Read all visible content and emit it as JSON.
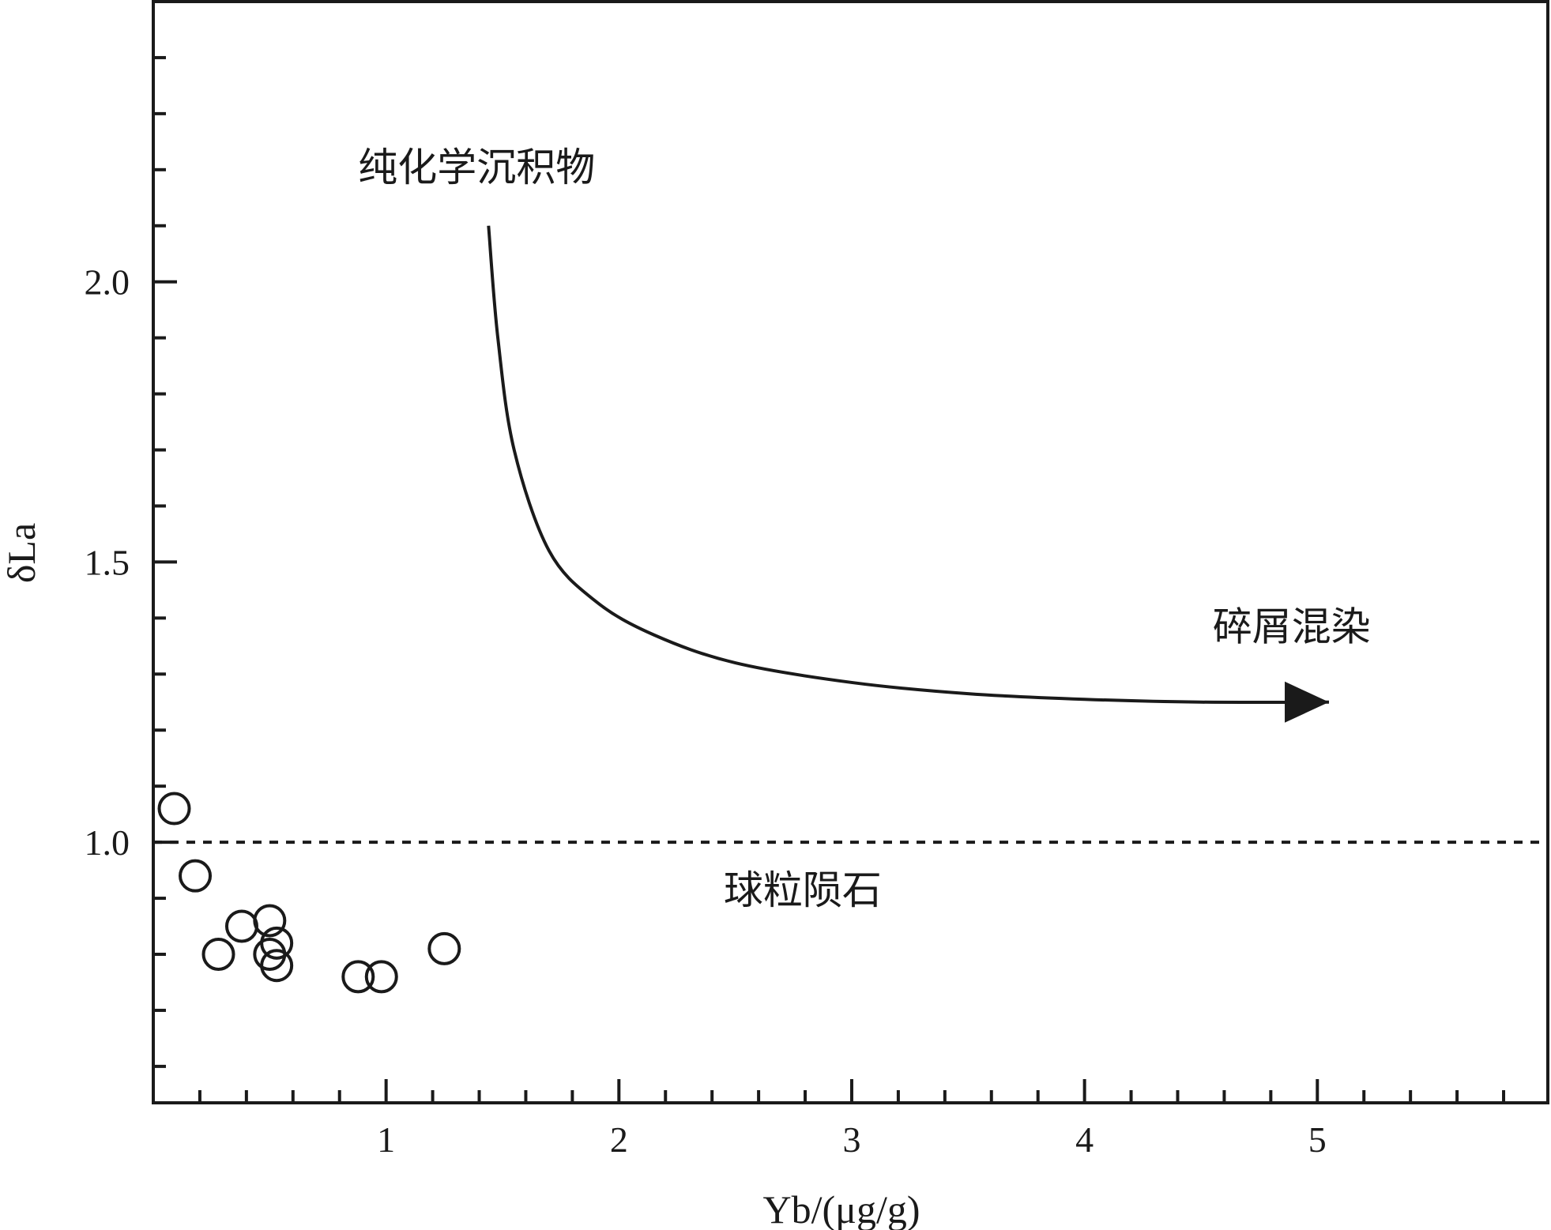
{
  "chart_data": {
    "type": "scatter",
    "xlabel": "Yb/(μg/g)",
    "ylabel": "δLa",
    "xlim": [
      0,
      5.99
    ],
    "ylim": [
      0.535,
      2.5
    ],
    "x_ticks": [
      1,
      2,
      3,
      4,
      5
    ],
    "y_ticks": [
      1.0,
      1.5,
      2.0
    ],
    "x_tick_labels": [
      "1",
      "2",
      "3",
      "4",
      "5"
    ],
    "y_tick_labels": [
      "1.0",
      "1.5",
      "2.0"
    ],
    "grid": false,
    "reference_line": {
      "y": 1.0,
      "style": "dotted"
    },
    "points": [
      {
        "x": 0.09,
        "y": 1.06
      },
      {
        "x": 0.18,
        "y": 0.94
      },
      {
        "x": 0.28,
        "y": 0.8
      },
      {
        "x": 0.38,
        "y": 0.85
      },
      {
        "x": 0.5,
        "y": 0.86
      },
      {
        "x": 0.5,
        "y": 0.8
      },
      {
        "x": 0.53,
        "y": 0.82
      },
      {
        "x": 0.53,
        "y": 0.78
      },
      {
        "x": 0.88,
        "y": 0.76
      },
      {
        "x": 0.98,
        "y": 0.76
      },
      {
        "x": 1.25,
        "y": 0.81
      }
    ],
    "trend_curve": [
      {
        "x": 1.44,
        "y": 2.1
      },
      {
        "x": 1.48,
        "y": 1.9
      },
      {
        "x": 1.55,
        "y": 1.7
      },
      {
        "x": 1.7,
        "y": 1.52
      },
      {
        "x": 1.9,
        "y": 1.43
      },
      {
        "x": 2.15,
        "y": 1.37
      },
      {
        "x": 2.5,
        "y": 1.32
      },
      {
        "x": 3.0,
        "y": 1.285
      },
      {
        "x": 3.5,
        "y": 1.265
      },
      {
        "x": 4.0,
        "y": 1.255
      },
      {
        "x": 4.5,
        "y": 1.25
      },
      {
        "x": 5.05,
        "y": 1.25
      }
    ],
    "annotations": {
      "pure_chemical": {
        "text": "纯化学沉积物",
        "x": 0.88,
        "y": 2.18
      },
      "detritus": {
        "text": "碎屑混染",
        "x": 4.55,
        "y": 1.36
      },
      "chondrite": {
        "text": "球粒陨石",
        "x": 2.45,
        "y": 0.89
      }
    }
  }
}
